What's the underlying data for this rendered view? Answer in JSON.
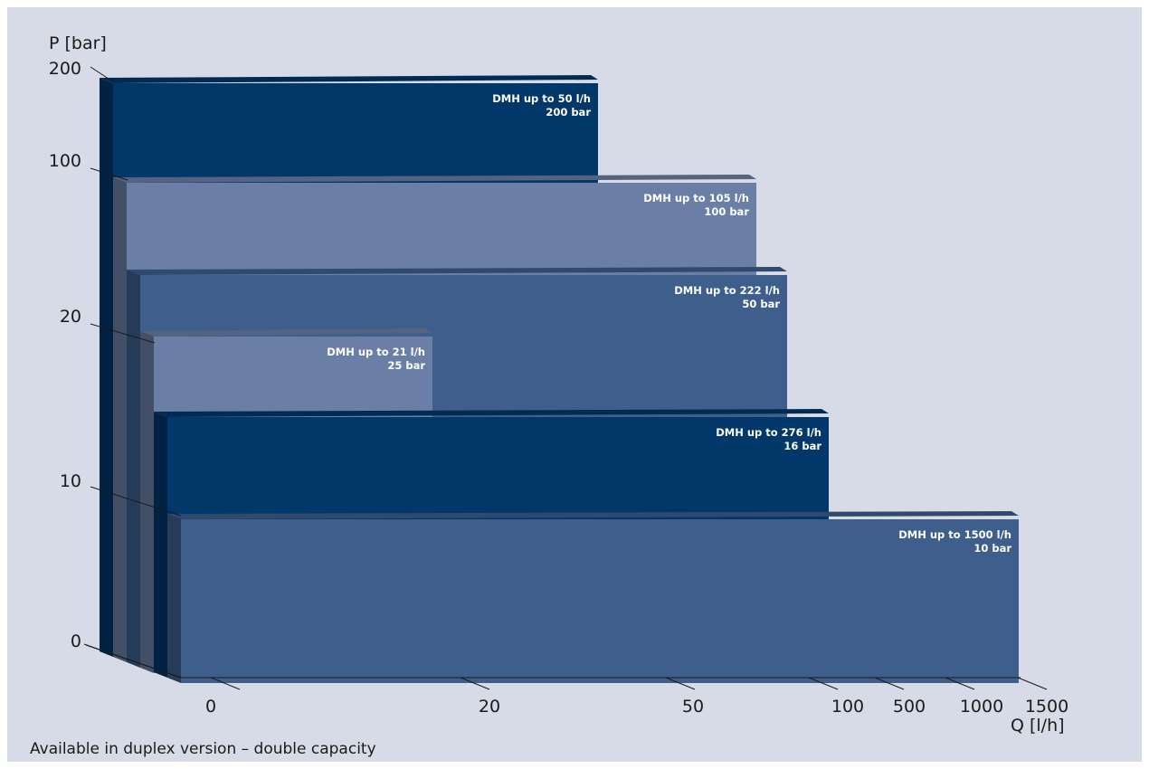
{
  "chart_data": {
    "type": "bar",
    "ylabel": "P [bar]",
    "xlabel": "Q [l/h]",
    "y_ticks": [
      "200",
      "100",
      "20",
      "10",
      "0"
    ],
    "x_ticks": [
      "0",
      "20",
      "50",
      "100",
      "500",
      "1000",
      "1500"
    ],
    "series": [
      {
        "name": "DMH up to 50 l/h",
        "label_line1": "DMH up to 50 l/h",
        "label_line2": "200 bar",
        "flow_lph": 50,
        "pressure_bar": 200,
        "color": "#02376a"
      },
      {
        "name": "DMH up to 105 l/h",
        "label_line1": "DMH up to 105 l/h",
        "label_line2": "100 bar",
        "flow_lph": 105,
        "pressure_bar": 100,
        "color": "#6b7fa6"
      },
      {
        "name": "DMH up to 222 l/h",
        "label_line1": "DMH up to 222 l/h",
        "label_line2": "50 bar",
        "flow_lph": 222,
        "pressure_bar": 50,
        "color": "#3e5f8c"
      },
      {
        "name": "DMH up to 21 l/h",
        "label_line1": "DMH up to 21 l/h",
        "label_line2": "25 bar",
        "flow_lph": 21,
        "pressure_bar": 25,
        "color": "#6b7fa6"
      },
      {
        "name": "DMH up to 276 l/h",
        "label_line1": "DMH up to 276 l/h",
        "label_line2": "16 bar",
        "flow_lph": 276,
        "pressure_bar": 16,
        "color": "#02376a"
      },
      {
        "name": "DMH up to 1500 l/h",
        "label_line1": "DMH up to 1500 l/h",
        "label_line2": "10 bar",
        "flow_lph": 1500,
        "pressure_bar": 10,
        "color": "#3e5f8c"
      }
    ]
  },
  "footnote": "Available in duplex version – double capacity"
}
